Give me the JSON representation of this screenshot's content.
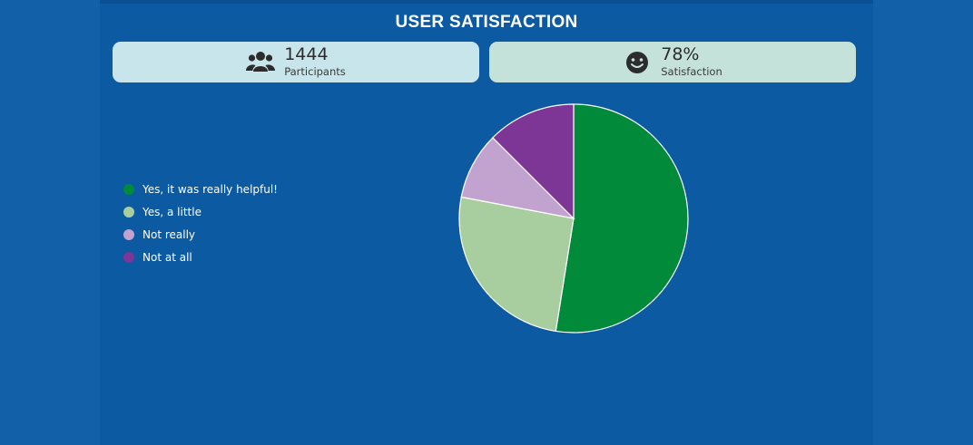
{
  "dashboard": {
    "title": "USER SATISFACTION"
  },
  "stats": {
    "participants": {
      "value": "1444",
      "label": "Participants",
      "icon": "users-icon"
    },
    "satisfaction": {
      "value": "78%",
      "label": "Satisfaction",
      "icon": "smiley-icon"
    }
  },
  "chart_data": {
    "type": "pie",
    "categories": [
      "Yes, it was really helpful!",
      "Yes, a little",
      "Not really",
      "Not at all"
    ],
    "values": [
      52.5,
      25.5,
      9.5,
      12.5
    ],
    "colors": [
      "#008a39",
      "#a8cd9f",
      "#c2a3d0",
      "#7d3596"
    ],
    "legend_position": "left",
    "start_angle_deg": 0,
    "direction": "clockwise"
  }
}
